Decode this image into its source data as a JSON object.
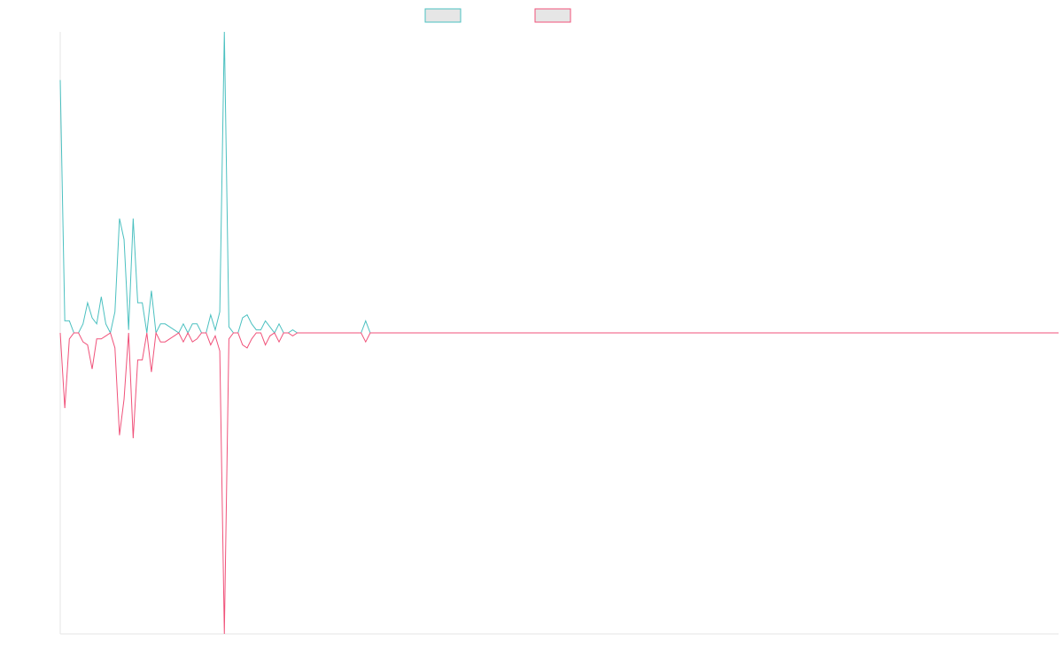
{
  "chart_data": {
    "type": "line",
    "title": "",
    "xlabel": "",
    "ylabel": "",
    "grid": false,
    "legend_position": "top-center",
    "ylim": [
      -1,
      1
    ],
    "n_points": 220,
    "x_start": 0,
    "series": [
      {
        "color": "#4bc0c0",
        "values": [
          0.84,
          0.04,
          0.04,
          0,
          0,
          0.03,
          0.1,
          0.05,
          0.03,
          0.12,
          0.03,
          0,
          0.07,
          0.38,
          0.31,
          0.01,
          0.38,
          0.1,
          0.1,
          0,
          0.14,
          0,
          0.03,
          0.03,
          0.02,
          0.01,
          0,
          0.03,
          0,
          0.03,
          0.03,
          0,
          0,
          0.06,
          0.01,
          0.07,
          1.0,
          0.02,
          0,
          0,
          0.05,
          0.06,
          0.03,
          0.01,
          0.01,
          0.04,
          0.02,
          0,
          0.03,
          0,
          0,
          0.01,
          0,
          0,
          0,
          0,
          0,
          0,
          0,
          0,
          0,
          0,
          0,
          0,
          0,
          0,
          0,
          0.04,
          0,
          0,
          0,
          0,
          0,
          0,
          0,
          0,
          0,
          0,
          0,
          0,
          0,
          0,
          0,
          0,
          0,
          0,
          0,
          0,
          0,
          0,
          0,
          0,
          0,
          0,
          0,
          0,
          0,
          0,
          0,
          0,
          0,
          0,
          0,
          0,
          0,
          0,
          0,
          0,
          0,
          0,
          0,
          0,
          0,
          0,
          0,
          0,
          0,
          0,
          0,
          0,
          0,
          0,
          0,
          0,
          0,
          0,
          0,
          0,
          0,
          0,
          0,
          0,
          0,
          0,
          0,
          0,
          0,
          0,
          0,
          0,
          0,
          0,
          0,
          0,
          0,
          0,
          0,
          0,
          0,
          0,
          0,
          0,
          0,
          0,
          0,
          0,
          0,
          0,
          0,
          0,
          0,
          0,
          0,
          0,
          0,
          0,
          0,
          0,
          0,
          0,
          0,
          0,
          0,
          0,
          0,
          0,
          0,
          0,
          0,
          0,
          0,
          0,
          0,
          0,
          0,
          0,
          0,
          0,
          0,
          0,
          0,
          0,
          0,
          0,
          0,
          0,
          0,
          0,
          0,
          0,
          0,
          0,
          0,
          0,
          0,
          0,
          0,
          0,
          0,
          0,
          0,
          0,
          0,
          0,
          0,
          0,
          0,
          0,
          0,
          0,
          0,
          0,
          0,
          0,
          0,
          0,
          0,
          0,
          0
        ]
      },
      {
        "color": "#f0527a",
        "values": [
          0,
          -0.25,
          -0.02,
          0,
          0,
          -0.03,
          -0.04,
          -0.12,
          -0.02,
          -0.02,
          -0.01,
          0,
          -0.05,
          -0.34,
          -0.22,
          0,
          -0.35,
          -0.09,
          -0.09,
          0,
          -0.13,
          0,
          -0.03,
          -0.03,
          -0.02,
          -0.01,
          0,
          -0.03,
          0,
          -0.03,
          -0.02,
          0,
          0,
          -0.04,
          -0.01,
          -0.06,
          -1.0,
          -0.02,
          0,
          0,
          -0.04,
          -0.05,
          -0.02,
          0,
          0,
          -0.04,
          -0.01,
          0,
          -0.03,
          0,
          0,
          -0.01,
          0,
          0,
          0,
          0,
          0,
          0,
          0,
          0,
          0,
          0,
          0,
          0,
          0,
          0,
          0,
          -0.03,
          0,
          0,
          0,
          0,
          0,
          0,
          0,
          0,
          0,
          0,
          0,
          0,
          0,
          0,
          0,
          0,
          0,
          0,
          0,
          0,
          0,
          0,
          0,
          0,
          0,
          0,
          0,
          0,
          0,
          0,
          0,
          0,
          0,
          0,
          0,
          0,
          0,
          0,
          0,
          0,
          0,
          0,
          0,
          0,
          0,
          0,
          0,
          0,
          0,
          0,
          0,
          0,
          0,
          0,
          0,
          0,
          0,
          0,
          0,
          0,
          0,
          0,
          0,
          0,
          0,
          0,
          0,
          0,
          0,
          0,
          0,
          0,
          0,
          0,
          0,
          0,
          0,
          0,
          0,
          0,
          0,
          0,
          0,
          0,
          0,
          0,
          0,
          0,
          0,
          0,
          0,
          0,
          0,
          0,
          0,
          0,
          0,
          0,
          0,
          0,
          0,
          0,
          0,
          0,
          0,
          0,
          0,
          0,
          0,
          0,
          0,
          0,
          0,
          0,
          0,
          0,
          0,
          0,
          0,
          0,
          0,
          0,
          0,
          0,
          0,
          0,
          0,
          0,
          0,
          0,
          0,
          0,
          0,
          0,
          0,
          0,
          0,
          0,
          0,
          0,
          0,
          0,
          0,
          0,
          0,
          0,
          0,
          0,
          0,
          0,
          0,
          0,
          0,
          0,
          0,
          0,
          0,
          0,
          0,
          0
        ]
      }
    ]
  },
  "legend": {
    "box_fill": "#e6e6e6",
    "items": [
      {
        "color": "#4bc0c0"
      },
      {
        "color": "#f0527a"
      }
    ]
  },
  "axes": {
    "color": "#e6e6e6"
  }
}
